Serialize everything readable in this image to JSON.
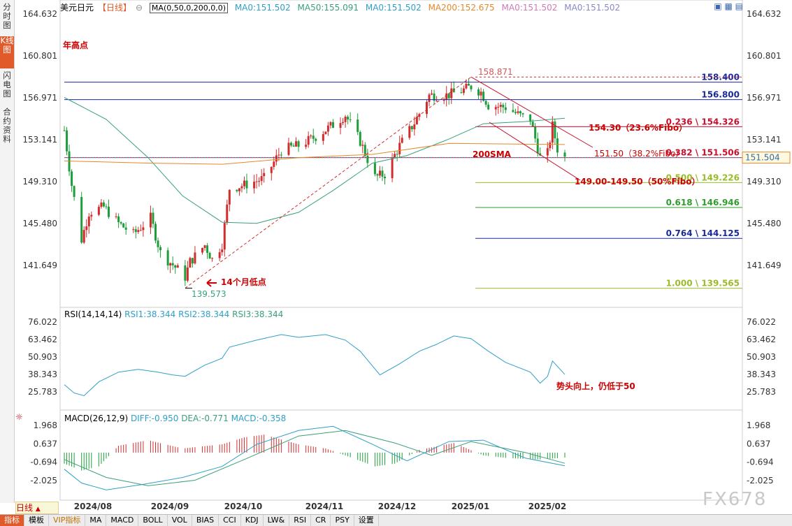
{
  "sidebar": {
    "tabs": [
      {
        "label": "分时图",
        "active": false
      },
      {
        "label": "K线图",
        "active": true
      },
      {
        "label": "闪电图",
        "active": false
      },
      {
        "label": "合约资料",
        "active": false
      }
    ]
  },
  "header": {
    "symbol": "美元日元",
    "period": "【日线】",
    "ma_formula": "MA(0,50,0,200,0,0)",
    "ma_values": [
      {
        "label": "MA0:151.502",
        "color": "#2f9fc7"
      },
      {
        "label": "MA50:155.091",
        "color": "#3aa07a"
      },
      {
        "label": "MA0:151.502",
        "color": "#2f9fc7"
      },
      {
        "label": "MA200:152.675",
        "color": "#e5892a"
      },
      {
        "label": "MA0:151.502",
        "color": "#d07ab7"
      },
      {
        "label": "MA0:151.502",
        "color": "#8888cc"
      }
    ]
  },
  "price_axis": {
    "ticks": [
      "164.632",
      "160.801",
      "156.971",
      "153.141",
      "149.310",
      "145.480",
      "141.649"
    ],
    "current_price": "151.504"
  },
  "annotations": {
    "year_high_label": "年高点",
    "peak_value": "158.871",
    "low_value": "139.573",
    "low_label": "14个月低点",
    "sma_label": "200SMA",
    "fib_236_text": "154.30（23.6%Fibo）",
    "fib_382_text": "151.50（38.2%Fibo）",
    "fib_50_text": "149.00-149.50（50%Fibo）",
    "rsi_note": "势头向上，仍低于50"
  },
  "levels": [
    {
      "label": "158.400",
      "color": "#1a2a9a"
    },
    {
      "label": "156.800",
      "color": "#1a2a9a"
    },
    {
      "label": "0.236 \\ 154.326",
      "color": "#c8102e"
    },
    {
      "label": "0.382 \\ 151.506",
      "color": "#c8102e"
    },
    {
      "label": "0.500 \\ 149.226",
      "color": "#9bbb2a"
    },
    {
      "label": "0.618 \\ 146.946",
      "color": "#2e9e2e"
    },
    {
      "label": "0.764 \\ 144.125",
      "color": "#1a2a9a"
    },
    {
      "label": "1.000 \\ 139.565",
      "color": "#9bbb2a"
    }
  ],
  "rsi": {
    "legend": "RSI(14,14,14)",
    "values_text": [
      "RSI1:38.344",
      "RSI2:38.344",
      "RSI3:38.344"
    ],
    "ticks": [
      "76.022",
      "63.462",
      "50.903",
      "38.343",
      "25.783"
    ]
  },
  "macd": {
    "legend": "MACD(26,12,9)",
    "values_text": [
      "DIFF:-0.950",
      "DEA:-0.771",
      "MACD:-0.358"
    ],
    "ticks": [
      "1.968",
      "0.637",
      "-0.694",
      "-2.025"
    ]
  },
  "date_axis": [
    "2024/08",
    "2024/09",
    "2024/10",
    "2024/11",
    "2024/12",
    "2025/01",
    "2025/02"
  ],
  "period_selector": "日线",
  "bottom_tabs": [
    "指标",
    "模板",
    "VIP指标",
    "MA",
    "MACD",
    "BOLL",
    "VOL",
    "BIAS",
    "CCI",
    "KDJ",
    "LW&",
    "RSI",
    "CR",
    "PSY",
    "设置"
  ],
  "watermark": "FX678",
  "chart_data": [
    {
      "type": "candlestick",
      "title": "美元日元【日线】",
      "ylim": [
        139.0,
        165.5
      ],
      "x_categories": [
        "2024/08",
        "2024/09",
        "2024/10",
        "2024/11",
        "2024/12",
        "2025/01",
        "2025/02"
      ],
      "close_path": [
        [
          "2024-07-29",
          154.0
        ],
        [
          "2024-08-01",
          149.0
        ],
        [
          "2024-08-05",
          144.0
        ],
        [
          "2024-08-08",
          146.5
        ],
        [
          "2024-08-14",
          147.0
        ],
        [
          "2024-08-20",
          145.5
        ],
        [
          "2024-08-26",
          144.5
        ],
        [
          "2024-09-02",
          146.0
        ],
        [
          "2024-09-06",
          142.8
        ],
        [
          "2024-09-11",
          141.7
        ],
        [
          "2024-09-16",
          140.6
        ],
        [
          "2024-09-18",
          142.0
        ],
        [
          "2024-09-24",
          143.5
        ],
        [
          "2024-09-27",
          142.2
        ],
        [
          "2024-10-01",
          143.6
        ],
        [
          "2024-10-04",
          148.7
        ],
        [
          "2024-10-10",
          149.0
        ],
        [
          "2024-10-18",
          149.6
        ],
        [
          "2024-10-25",
          152.2
        ],
        [
          "2024-11-01",
          152.6
        ],
        [
          "2024-11-07",
          153.3
        ],
        [
          "2024-11-15",
          154.5
        ],
        [
          "2024-11-20",
          155.4
        ],
        [
          "2024-11-26",
          153.0
        ],
        [
          "2024-12-02",
          149.7
        ],
        [
          "2024-12-06",
          150.0
        ],
        [
          "2024-12-12",
          152.6
        ],
        [
          "2024-12-18",
          154.7
        ],
        [
          "2024-12-24",
          157.2
        ],
        [
          "2024-12-31",
          157.2
        ],
        [
          "2025-01-06",
          157.6
        ],
        [
          "2025-01-10",
          158.0
        ],
        [
          "2025-01-14",
          157.5
        ],
        [
          "2025-01-17",
          156.3
        ],
        [
          "2025-01-24",
          156.1
        ],
        [
          "2025-01-31",
          155.2
        ],
        [
          "2025-02-03",
          155.0
        ],
        [
          "2025-02-07",
          151.5
        ],
        [
          "2025-02-10",
          151.9
        ],
        [
          "2025-02-12",
          154.4
        ],
        [
          "2025-02-14",
          152.3
        ],
        [
          "2025-02-17",
          151.5
        ]
      ],
      "ma50_path": [
        [
          "2024-07-29",
          157.0
        ],
        [
          "2024-08-15",
          155.0
        ],
        [
          "2024-09-01",
          151.5
        ],
        [
          "2024-09-15",
          148.0
        ],
        [
          "2024-10-01",
          145.6
        ],
        [
          "2024-10-15",
          145.5
        ],
        [
          "2024-11-01",
          146.5
        ],
        [
          "2024-11-15",
          148.5
        ],
        [
          "2024-12-01",
          151.0
        ],
        [
          "2024-12-15",
          151.7
        ],
        [
          "2025-01-01",
          153.2
        ],
        [
          "2025-01-15",
          154.6
        ],
        [
          "2025-02-01",
          154.8
        ],
        [
          "2025-02-17",
          155.1
        ]
      ],
      "ma200_path": [
        [
          "2024-07-29",
          151.2
        ],
        [
          "2024-09-01",
          151.0
        ],
        [
          "2024-10-01",
          150.9
        ],
        [
          "2024-11-01",
          151.5
        ],
        [
          "2024-12-01",
          151.8
        ],
        [
          "2025-01-01",
          152.8
        ],
        [
          "2025-02-17",
          152.7
        ]
      ],
      "horizontal_levels": [
        158.4,
        156.8,
        154.326,
        151.506,
        149.226,
        146.946,
        144.125,
        139.565
      ],
      "last_price": 151.504,
      "high": 158.871,
      "low": 139.573
    },
    {
      "type": "line",
      "title": "RSI(14,14,14)",
      "ylim": [
        21,
        80
      ],
      "series": [
        {
          "name": "RSI1",
          "values_path": [
            [
              "2024-07-29",
              31
            ],
            [
              "2024-08-02",
              25
            ],
            [
              "2024-08-06",
              23
            ],
            [
              "2024-08-12",
              33
            ],
            [
              "2024-08-20",
              40
            ],
            [
              "2024-08-28",
              42
            ],
            [
              "2024-09-05",
              40
            ],
            [
              "2024-09-11",
              38
            ],
            [
              "2024-09-16",
              37
            ],
            [
              "2024-09-24",
              45
            ],
            [
              "2024-10-01",
              50
            ],
            [
              "2024-10-04",
              58
            ],
            [
              "2024-10-15",
              63
            ],
            [
              "2024-10-25",
              67
            ],
            [
              "2024-11-01",
              65
            ],
            [
              "2024-11-12",
              67
            ],
            [
              "2024-11-20",
              63
            ],
            [
              "2024-11-26",
              55
            ],
            [
              "2024-12-04",
              38
            ],
            [
              "2024-12-12",
              46
            ],
            [
              "2024-12-20",
              55
            ],
            [
              "2024-12-27",
              60
            ],
            [
              "2025-01-03",
              66
            ],
            [
              "2025-01-10",
              64
            ],
            [
              "2025-01-17",
              55
            ],
            [
              "2025-01-24",
              47
            ],
            [
              "2025-02-03",
              40
            ],
            [
              "2025-02-07",
              32
            ],
            [
              "2025-02-10",
              37
            ],
            [
              "2025-02-12",
              48
            ],
            [
              "2025-02-17",
              38.3
            ]
          ]
        }
      ]
    },
    {
      "type": "bar",
      "title": "MACD(26,12,9)",
      "ylim": [
        -3.0,
        2.5
      ],
      "series": [
        {
          "name": "DIFF",
          "values_path": [
            [
              "2024-07-29",
              -1.2
            ],
            [
              "2024-08-05",
              -2.2
            ],
            [
              "2024-08-15",
              -2.7
            ],
            [
              "2024-08-30",
              -2.3
            ],
            [
              "2024-09-15",
              -1.8
            ],
            [
              "2024-10-01",
              -1.0
            ],
            [
              "2024-10-15",
              0.6
            ],
            [
              "2024-11-01",
              1.6
            ],
            [
              "2024-11-15",
              1.9
            ],
            [
              "2024-12-01",
              0.6
            ],
            [
              "2024-12-15",
              -0.6
            ],
            [
              "2025-01-01",
              0.8
            ],
            [
              "2025-01-15",
              0.9
            ],
            [
              "2025-02-01",
              -0.4
            ],
            [
              "2025-02-17",
              -0.95
            ]
          ]
        },
        {
          "name": "DEA",
          "values_path": [
            [
              "2024-07-29",
              -0.5
            ],
            [
              "2024-08-15",
              -1.8
            ],
            [
              "2024-09-01",
              -2.4
            ],
            [
              "2024-09-20",
              -2.0
            ],
            [
              "2024-10-10",
              -0.5
            ],
            [
              "2024-11-01",
              1.2
            ],
            [
              "2024-11-20",
              1.6
            ],
            [
              "2024-12-10",
              0.7
            ],
            [
              "2024-12-25",
              -0.2
            ],
            [
              "2025-01-10",
              0.8
            ],
            [
              "2025-02-01",
              0.0
            ],
            [
              "2025-02-17",
              -0.77
            ]
          ]
        },
        {
          "name": "MACD",
          "values_path": [
            [
              "2024-07-29",
              -0.8
            ],
            [
              "2024-08-05",
              -1.3
            ],
            [
              "2024-08-12",
              -1.0
            ],
            [
              "2024-08-20",
              0.5
            ],
            [
              "2024-09-01",
              0.9
            ],
            [
              "2024-09-15",
              0.3
            ],
            [
              "2024-10-01",
              0.6
            ],
            [
              "2024-10-10",
              1.1
            ],
            [
              "2024-10-18",
              1.3
            ],
            [
              "2024-11-01",
              0.6
            ],
            [
              "2024-11-12",
              0.3
            ],
            [
              "2024-11-20",
              -0.2
            ],
            [
              "2024-12-02",
              -1.0
            ],
            [
              "2024-12-10",
              -0.8
            ],
            [
              "2024-12-20",
              0.2
            ],
            [
              "2025-01-03",
              0.7
            ],
            [
              "2025-01-15",
              -0.2
            ],
            [
              "2025-01-25",
              -0.4
            ],
            [
              "2025-02-07",
              -0.5
            ],
            [
              "2025-02-17",
              -0.36
            ]
          ]
        }
      ]
    }
  ]
}
